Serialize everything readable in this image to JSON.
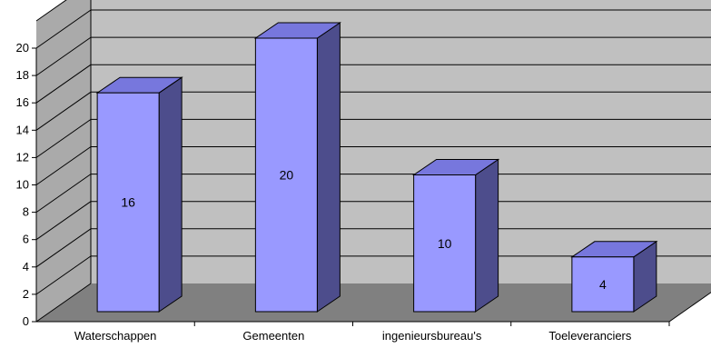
{
  "chart_data": {
    "type": "bar",
    "style": "3d-column",
    "categories": [
      "Waterschappen",
      "Gemeenten",
      "ingenieursbureau's",
      "Toeleveranciers"
    ],
    "values": [
      16,
      20,
      10,
      4
    ],
    "data_labels": [
      "16",
      "20",
      "10",
      "4"
    ],
    "ylim": [
      0,
      20
    ],
    "yticks": [
      "0",
      "2",
      "4",
      "6",
      "8",
      "10",
      "12",
      "14",
      "16",
      "18",
      "20"
    ],
    "title": "",
    "xlabel": "",
    "ylabel": "",
    "grid": true,
    "legend": "none",
    "colors": {
      "bar_front": "#9999FF",
      "bar_top": "#7777DD",
      "bar_side": "#4D4D8C",
      "back_wall": "#C0C0C0",
      "side_wall": "#AAAAAA",
      "floor": "#808080",
      "gridline": "#000000"
    }
  }
}
